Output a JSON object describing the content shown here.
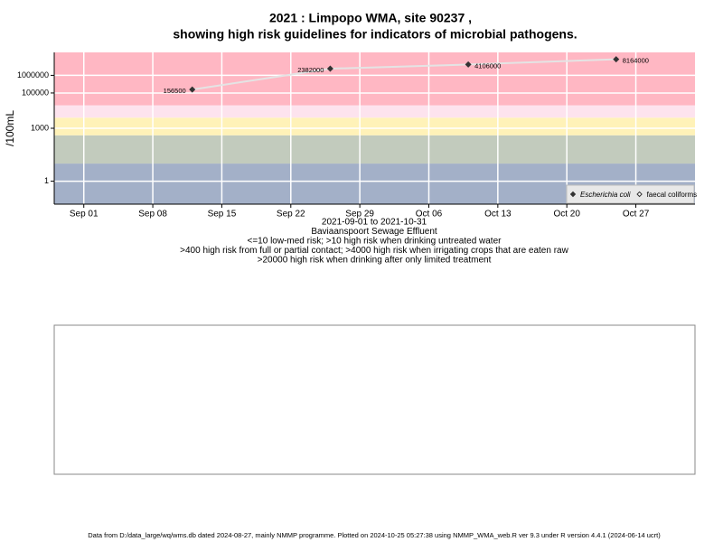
{
  "chart_data": {
    "type": "scatter",
    "title": "2021 : Limpopo WMA, site 90237 ,",
    "subtitle": "showing high risk guidelines for indicators of microbial pathogens.",
    "y_label": "/100mL",
    "x_label_lines": [
      "2021-09-01 to 2021-10-31",
      "Baviaanspoort Sewage Effluent",
      "<=10 low-med risk; >10 high risk when drinking untreated water",
      ">400 high risk from full or partial contact; >4000 high risk when irrigating crops that are eaten raw",
      ">20000 high risk when drinking after only limited treatment"
    ],
    "x": [
      "2021-09-12",
      "2021-09-26",
      "2021-10-10",
      "2021-10-25"
    ],
    "series": [
      {
        "name": "Escherichia coli",
        "color": "#333333",
        "values": [
          156500,
          2382000,
          4106000,
          8164000
        ]
      },
      {
        "name": "faecal coliforms",
        "color": "#333333",
        "values": [
          null,
          null,
          null,
          null
        ]
      }
    ],
    "line_color": "#e4e4e4",
    "xlim": [
      "2021-08-29",
      "2021-11-02"
    ],
    "xticks": [
      {
        "value": "2021-09-01",
        "label": "Sep 01"
      },
      {
        "value": "2021-09-08",
        "label": "Sep 08"
      },
      {
        "value": "2021-09-15",
        "label": "Sep 15"
      },
      {
        "value": "2021-09-22",
        "label": "Sep 22"
      },
      {
        "value": "2021-09-29",
        "label": "Sep 29"
      },
      {
        "value": "2021-10-06",
        "label": "Oct 06"
      },
      {
        "value": "2021-10-13",
        "label": "Oct 13"
      },
      {
        "value": "2021-10-20",
        "label": "Oct 20"
      },
      {
        "value": "2021-10-27",
        "label": "Oct 27"
      }
    ],
    "ylim": [
      0.05,
      20000000
    ],
    "yticks": [
      1,
      1000,
      100000,
      1000000
    ],
    "log_y": true,
    "grid": true,
    "band_limits": [
      10,
      400,
      4000,
      20000
    ],
    "band_colors": [
      "#a3b0c8",
      "#c2cbbd",
      "#fff2b8",
      "#fde3ee",
      "#ffb7c3"
    ],
    "legend": "bottom-right",
    "footer": "Data from D:/data_large/wq/wms.db dated 2024-08-27, mainly NMMP programme. Plotted on 2024-10-25 05:27:38 using NMMP_WMA_web.R ver 9.3 under R version 4.4.1 (2024-06-14 ucrt)"
  }
}
